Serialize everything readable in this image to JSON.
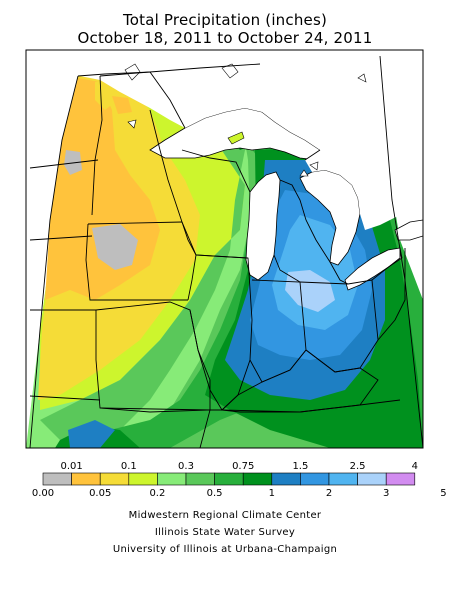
{
  "title": {
    "line1": "Total Precipitation (inches)",
    "line2": "October 18, 2011 to October 24, 2011"
  },
  "legend": {
    "upper_labels": [
      "0.01",
      "0.1",
      "0.3",
      "0.75",
      "1.5",
      "2.5",
      "4"
    ],
    "lower_labels": [
      "0.00",
      "0.05",
      "0.2",
      "0.5",
      "1",
      "2",
      "3",
      "5"
    ],
    "colors": [
      "#bebebe",
      "#ffc33c",
      "#f5dc37",
      "#cdf52d",
      "#87eb78",
      "#5ac85a",
      "#28af3c",
      "#00911e",
      "#1e7fc3",
      "#3296e1",
      "#50b4f0",
      "#aad2fa",
      "#d28cf0"
    ]
  },
  "credits": {
    "line1": "Midwestern Regional Climate Center",
    "line2": "Illinois State Water Survey",
    "line3": "University of Illinois at Urbana-Champaign"
  }
}
